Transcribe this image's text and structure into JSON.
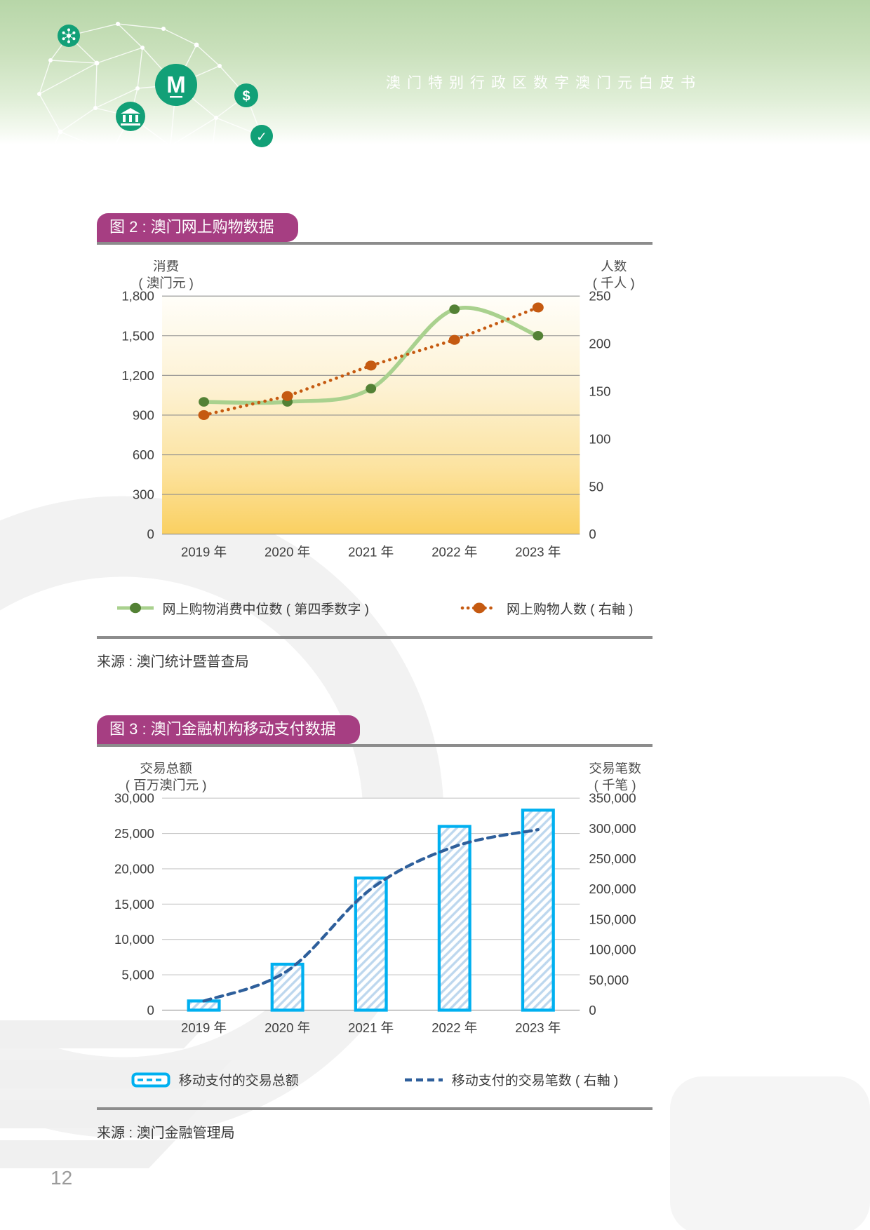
{
  "header": {
    "title": "澳门特别行政区数字澳门元白皮书",
    "logo_letter": "M",
    "coin_symbol": "$",
    "check_symbol": "✓",
    "icon_names": [
      "nodes-icon",
      "macau-m-logo-icon",
      "coin-icon",
      "bank-icon",
      "check-icon"
    ],
    "accent_green": "#12a077"
  },
  "page_number": "12",
  "figure2": {
    "badge": "图 2 : 澳门网上购物数据",
    "source": "来源 : 澳门统计暨普查局",
    "badge_color": "#a63e82"
  },
  "figure3": {
    "badge": "图 3 : 澳门金融机构移动支付数据",
    "source": "来源 : 澳门金融管理局",
    "badge_color": "#a63e82"
  },
  "chart_data": [
    {
      "type": "line",
      "title": "图 2 : 澳门网上购物数据",
      "categories": [
        "2019 年",
        "2020 年",
        "2021 年",
        "2022 年",
        "2023 年"
      ],
      "series": [
        {
          "name": "网上购物消费中位数 ( 第四季数字 )",
          "axis": "left",
          "line_style": "smooth-solid",
          "color": "#a9d18e",
          "marker_color": "#538135",
          "values": [
            1000,
            1000,
            1100,
            1700,
            1500
          ]
        },
        {
          "name": "网上购物人数 ( 右軸 )",
          "axis": "right",
          "line_style": "dotted",
          "color": "#c55a11",
          "marker_color": "#c55a11",
          "values": [
            125,
            145,
            177,
            204,
            238
          ]
        }
      ],
      "left_axis": {
        "title_line1": "消费",
        "title_line2": "( 澳门元 )",
        "min": 0,
        "max": 1800,
        "step": 300,
        "tick_labels": [
          "1,800",
          "1,500",
          "1,200",
          "900",
          "600",
          "300",
          "0"
        ]
      },
      "right_axis": {
        "title_line1": "人数",
        "title_line2": "( 千人 )",
        "min": 0,
        "max": 250,
        "step": 50,
        "tick_labels": [
          "250",
          "200",
          "150",
          "100",
          "50",
          "0"
        ]
      },
      "plot_gradient": [
        "#fffef9",
        "#fdf2d4",
        "#fce3a0",
        "#fad061"
      ],
      "gridline_color": "#909090",
      "legend_position": "bottom"
    },
    {
      "type": "bar",
      "title": "图 3 : 澳门金融机构移动支付数据",
      "categories": [
        "2019 年",
        "2020 年",
        "2021 年",
        "2022 年",
        "2023 年"
      ],
      "bar_series": {
        "name": "移动支付的交易总额",
        "axis": "left",
        "values": [
          1300,
          6500,
          18700,
          26000,
          28300
        ],
        "border_color": "#00b0f0",
        "hatch_color": "#bdd7ee"
      },
      "line_series": {
        "name": "移动支付的交易笔数 ( 右軸 )",
        "axis": "right",
        "line_style": "dashed-smooth",
        "color": "#2e5f9b",
        "values": [
          15000,
          65000,
          200000,
          270000,
          298000
        ]
      },
      "left_axis": {
        "title_line1": "交易总额",
        "title_line2": "( 百万澳门元 )",
        "min": 0,
        "max": 30000,
        "step": 5000,
        "tick_labels": [
          "30,000",
          "25,000",
          "20,000",
          "15,000",
          "10,000",
          "5,000",
          "0"
        ]
      },
      "right_axis": {
        "title_line1": "交易笔数",
        "title_line2": "( 千笔 )",
        "min": 0,
        "max": 350000,
        "step": 50000,
        "tick_labels": [
          "350,000",
          "300,000",
          "250,000",
          "200,000",
          "150,000",
          "100,000",
          "50,000",
          "0"
        ]
      },
      "gridline_color": "#c9c9c9",
      "zero_line_color": "#9a9a9a",
      "legend_position": "bottom"
    }
  ]
}
